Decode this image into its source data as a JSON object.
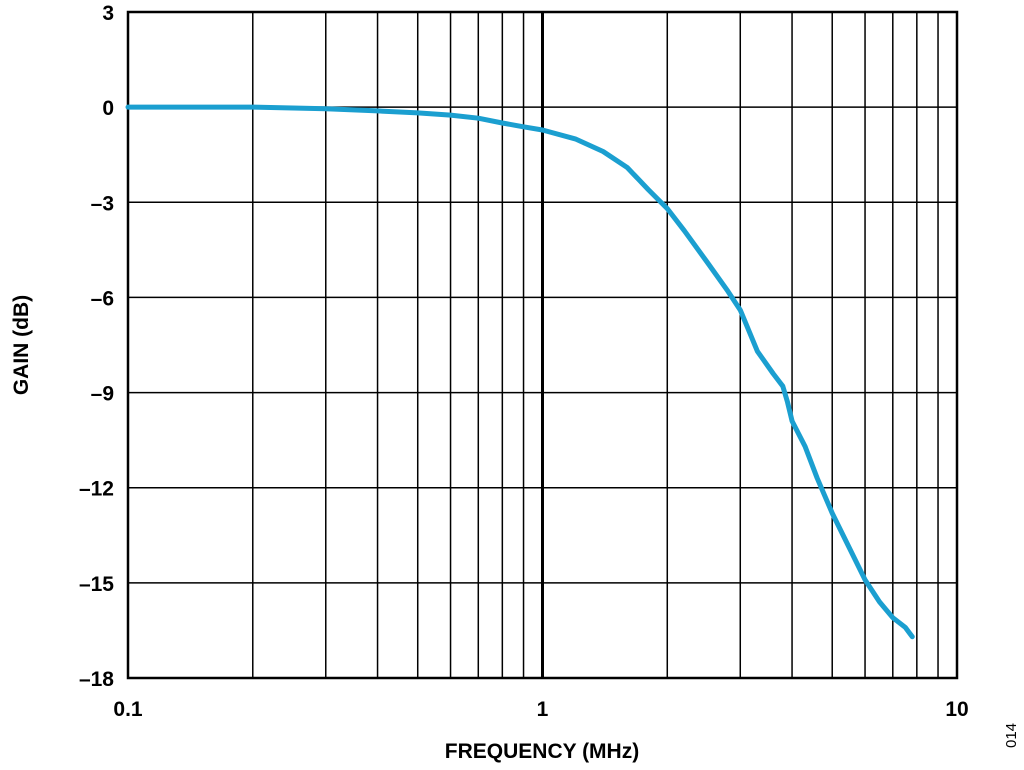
{
  "chart_data": {
    "type": "line",
    "title": "",
    "xlabel": "FREQUENCY (MHz)",
    "ylabel": "GAIN (dB)",
    "xscale": "log",
    "xlim": [
      0.1,
      10
    ],
    "ylim": [
      -18,
      3
    ],
    "x_ticks": [
      0.1,
      1,
      10
    ],
    "x_tick_labels": [
      "0.1",
      "1",
      "10"
    ],
    "y_ticks": [
      3,
      0,
      -3,
      -6,
      -9,
      -12,
      -15,
      -18
    ],
    "y_tick_labels": [
      "3",
      "0",
      "–3",
      "–6",
      "–9",
      "–12",
      "–15",
      "–18"
    ],
    "grid": true,
    "line_color": "#1b9fd0",
    "series": [
      {
        "x": [
          0.1,
          0.2,
          0.3,
          0.4,
          0.5,
          0.6,
          0.7,
          0.8,
          0.9,
          1.0,
          1.2,
          1.4,
          1.6,
          1.8,
          2.0,
          2.2,
          2.5,
          2.8,
          3.0,
          3.3,
          3.6,
          3.8,
          3.9,
          4.0,
          4.3,
          4.6,
          5.0,
          5.5,
          6.0,
          6.5,
          7.0,
          7.5,
          7.8
        ],
        "y": [
          0,
          0,
          -0.05,
          -0.12,
          -0.18,
          -0.25,
          -0.35,
          -0.5,
          -0.62,
          -0.72,
          -1.0,
          -1.4,
          -1.9,
          -2.6,
          -3.2,
          -3.9,
          -4.9,
          -5.8,
          -6.4,
          -7.7,
          -8.4,
          -8.8,
          -9.3,
          -9.9,
          -10.7,
          -11.7,
          -12.8,
          -13.9,
          -14.9,
          -15.6,
          -16.1,
          -16.4,
          -16.7
        ]
      }
    ]
  },
  "figure_id": "014"
}
